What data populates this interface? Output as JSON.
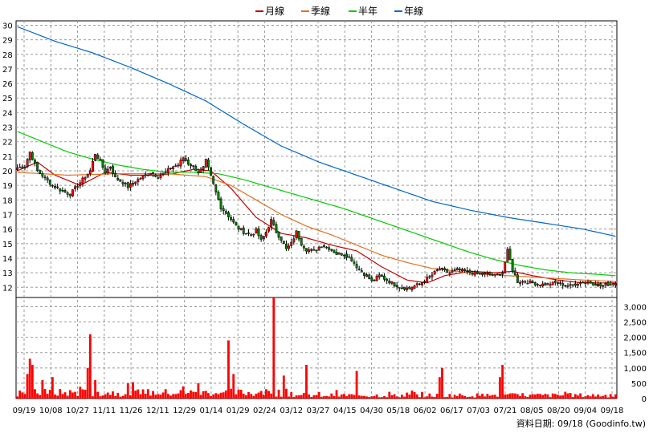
{
  "chart_data": {
    "type": "candlestick",
    "legend": [
      {
        "name": "月線",
        "color": "#c00000"
      },
      {
        "name": "季線",
        "color": "#e07020"
      },
      {
        "name": "半年",
        "color": "#00cc00"
      },
      {
        "name": "年線",
        "color": "#0066cc"
      }
    ],
    "legend_placement": "top-center",
    "grid": true,
    "colors": {
      "up": "#ff0000",
      "down": "#008000",
      "volume": "#ff0000"
    },
    "price_axis": {
      "ylim": [
        11.3,
        30.3
      ],
      "ticks": [
        12,
        13,
        14,
        15,
        16,
        17,
        18,
        19,
        20,
        21,
        22,
        23,
        24,
        25,
        26,
        27,
        28,
        29,
        30
      ],
      "side": "left"
    },
    "volume_axis": {
      "ylim": [
        0,
        3300
      ],
      "ticks": [
        "0",
        "500",
        "1,000",
        "1,500",
        "2,000",
        "2,500",
        "3,000"
      ],
      "side": "right"
    },
    "x_ticks": [
      "09/19",
      "10/08",
      "10/27",
      "11/11",
      "11/26",
      "12/11",
      "12/29",
      "01/14",
      "01/29",
      "02/24",
      "03/12",
      "03/27",
      "04/15",
      "04/30",
      "05/18",
      "06/02",
      "06/17",
      "07/03",
      "07/21",
      "08/05",
      "08/20",
      "09/04",
      "09/18"
    ],
    "footer_text": "資料日期: 09/18  (Goodinfo.tw)",
    "close_anchors": [
      [
        0,
        20.2
      ],
      [
        3,
        20.3
      ],
      [
        5,
        21.3
      ],
      [
        8,
        20.0
      ],
      [
        11,
        19.5
      ],
      [
        14,
        19.0
      ],
      [
        18,
        18.6
      ],
      [
        21,
        18.4
      ],
      [
        24,
        19.0
      ],
      [
        27,
        19.6
      ],
      [
        29,
        20.0
      ],
      [
        31,
        21.2
      ],
      [
        33,
        20.6
      ],
      [
        35,
        19.9
      ],
      [
        37,
        20.3
      ],
      [
        39,
        19.5
      ],
      [
        42,
        19.2
      ],
      [
        44,
        18.9
      ],
      [
        47,
        19.3
      ],
      [
        50,
        19.6
      ],
      [
        53,
        19.9
      ],
      [
        56,
        19.6
      ],
      [
        59,
        19.9
      ],
      [
        62,
        20.3
      ],
      [
        64,
        20.4
      ],
      [
        66,
        20.9
      ],
      [
        68,
        20.5
      ],
      [
        70,
        20.3
      ],
      [
        72,
        19.9
      ],
      [
        74,
        20.2
      ],
      [
        75,
        20.7
      ],
      [
        77,
        19.6
      ],
      [
        79,
        18.5
      ],
      [
        81,
        17.5
      ],
      [
        84,
        16.9
      ],
      [
        87,
        16.2
      ],
      [
        90,
        15.8
      ],
      [
        93,
        15.6
      ],
      [
        95,
        15.9
      ],
      [
        97,
        15.2
      ],
      [
        99,
        15.8
      ],
      [
        101,
        16.6
      ],
      [
        103,
        15.8
      ],
      [
        105,
        15.3
      ],
      [
        107,
        14.6
      ],
      [
        109,
        15.0
      ],
      [
        111,
        15.8
      ],
      [
        113,
        15.0
      ],
      [
        115,
        14.6
      ],
      [
        118,
        14.5
      ],
      [
        121,
        14.9
      ],
      [
        124,
        14.7
      ],
      [
        127,
        14.3
      ],
      [
        130,
        14.3
      ],
      [
        133,
        13.9
      ],
      [
        136,
        13.2
      ],
      [
        139,
        12.8
      ],
      [
        141,
        12.4
      ],
      [
        144,
        12.8
      ],
      [
        147,
        12.5
      ],
      [
        150,
        12.2
      ],
      [
        153,
        12.0
      ],
      [
        156,
        11.9
      ],
      [
        158,
        12.1
      ],
      [
        160,
        12.2
      ],
      [
        162,
        12.5
      ],
      [
        164,
        12.7
      ],
      [
        166,
        13.0
      ],
      [
        168,
        13.3
      ],
      [
        170,
        13.1
      ],
      [
        172,
        13.0
      ],
      [
        175,
        13.2
      ],
      [
        178,
        13.1
      ],
      [
        181,
        13.0
      ],
      [
        184,
        12.9
      ],
      [
        187,
        12.9
      ],
      [
        190,
        12.8
      ],
      [
        193,
        13.0
      ],
      [
        195,
        14.5
      ],
      [
        197,
        13.2
      ],
      [
        199,
        12.4
      ],
      [
        202,
        12.4
      ],
      [
        205,
        12.3
      ],
      [
        208,
        12.2
      ],
      [
        211,
        12.2
      ],
      [
        214,
        12.3
      ],
      [
        217,
        12.2
      ],
      [
        220,
        12.1
      ],
      [
        223,
        12.3
      ],
      [
        226,
        12.4
      ],
      [
        229,
        12.3
      ],
      [
        232,
        12.1
      ],
      [
        235,
        12.2
      ],
      [
        238,
        12.3
      ]
    ],
    "ma_series": [
      {
        "name": "月線",
        "points": [
          [
            0,
            20.0
          ],
          [
            8,
            20.6
          ],
          [
            15,
            19.7
          ],
          [
            25,
            19.0
          ],
          [
            35,
            19.9
          ],
          [
            45,
            19.7
          ],
          [
            55,
            19.7
          ],
          [
            62,
            19.8
          ],
          [
            70,
            20.1
          ],
          [
            77,
            20.0
          ],
          [
            85,
            18.8
          ],
          [
            95,
            16.8
          ],
          [
            105,
            15.7
          ],
          [
            115,
            15.4
          ],
          [
            125,
            14.9
          ],
          [
            135,
            14.5
          ],
          [
            145,
            13.4
          ],
          [
            155,
            12.5
          ],
          [
            163,
            12.3
          ],
          [
            170,
            12.8
          ],
          [
            180,
            13.1
          ],
          [
            190,
            13.0
          ],
          [
            197,
            13.1
          ],
          [
            205,
            12.8
          ],
          [
            215,
            12.5
          ],
          [
            225,
            12.3
          ],
          [
            238,
            12.3
          ]
        ]
      },
      {
        "name": "季線",
        "points": [
          [
            0,
            19.9
          ],
          [
            20,
            19.7
          ],
          [
            40,
            19.8
          ],
          [
            60,
            19.8
          ],
          [
            75,
            19.6
          ],
          [
            85,
            19.0
          ],
          [
            95,
            18.0
          ],
          [
            105,
            17.0
          ],
          [
            115,
            16.2
          ],
          [
            125,
            15.6
          ],
          [
            135,
            14.9
          ],
          [
            145,
            14.2
          ],
          [
            155,
            13.7
          ],
          [
            165,
            13.3
          ],
          [
            175,
            13.1
          ],
          [
            185,
            12.9
          ],
          [
            195,
            12.8
          ],
          [
            205,
            12.7
          ],
          [
            215,
            12.6
          ],
          [
            225,
            12.5
          ],
          [
            238,
            12.4
          ]
        ]
      },
      {
        "name": "半年",
        "points": [
          [
            0,
            22.7
          ],
          [
            10,
            22.0
          ],
          [
            20,
            21.3
          ],
          [
            30,
            20.8
          ],
          [
            40,
            20.4
          ],
          [
            50,
            20.1
          ],
          [
            60,
            19.9
          ],
          [
            70,
            19.9
          ],
          [
            80,
            19.8
          ],
          [
            90,
            19.4
          ],
          [
            100,
            18.9
          ],
          [
            110,
            18.4
          ],
          [
            120,
            17.9
          ],
          [
            130,
            17.4
          ],
          [
            140,
            16.8
          ],
          [
            150,
            16.2
          ],
          [
            160,
            15.6
          ],
          [
            170,
            15.0
          ],
          [
            180,
            14.4
          ],
          [
            190,
            13.9
          ],
          [
            200,
            13.5
          ],
          [
            210,
            13.2
          ],
          [
            220,
            13.0
          ],
          [
            230,
            12.9
          ],
          [
            238,
            12.8
          ]
        ]
      },
      {
        "name": "年線",
        "points": [
          [
            0,
            29.9
          ],
          [
            15,
            28.9
          ],
          [
            30,
            28.1
          ],
          [
            45,
            27.1
          ],
          [
            60,
            26.0
          ],
          [
            75,
            24.8
          ],
          [
            90,
            23.2
          ],
          [
            105,
            21.7
          ],
          [
            120,
            20.6
          ],
          [
            135,
            19.7
          ],
          [
            150,
            18.8
          ],
          [
            165,
            17.9
          ],
          [
            180,
            17.3
          ],
          [
            195,
            16.8
          ],
          [
            210,
            16.4
          ],
          [
            225,
            16.0
          ],
          [
            238,
            15.5
          ]
        ]
      }
    ],
    "volume_spikes": [
      [
        4,
        800
      ],
      [
        5,
        1300
      ],
      [
        6,
        1100
      ],
      [
        10,
        600
      ],
      [
        14,
        700
      ],
      [
        28,
        1000
      ],
      [
        29,
        2100
      ],
      [
        31,
        600
      ],
      [
        50,
        300
      ],
      [
        72,
        500
      ],
      [
        84,
        1900
      ],
      [
        86,
        800
      ],
      [
        102,
        3300
      ],
      [
        106,
        750
      ],
      [
        115,
        1100
      ],
      [
        135,
        900
      ],
      [
        168,
        700
      ],
      [
        169,
        1000
      ],
      [
        192,
        700
      ],
      [
        193,
        1100
      ]
    ]
  }
}
